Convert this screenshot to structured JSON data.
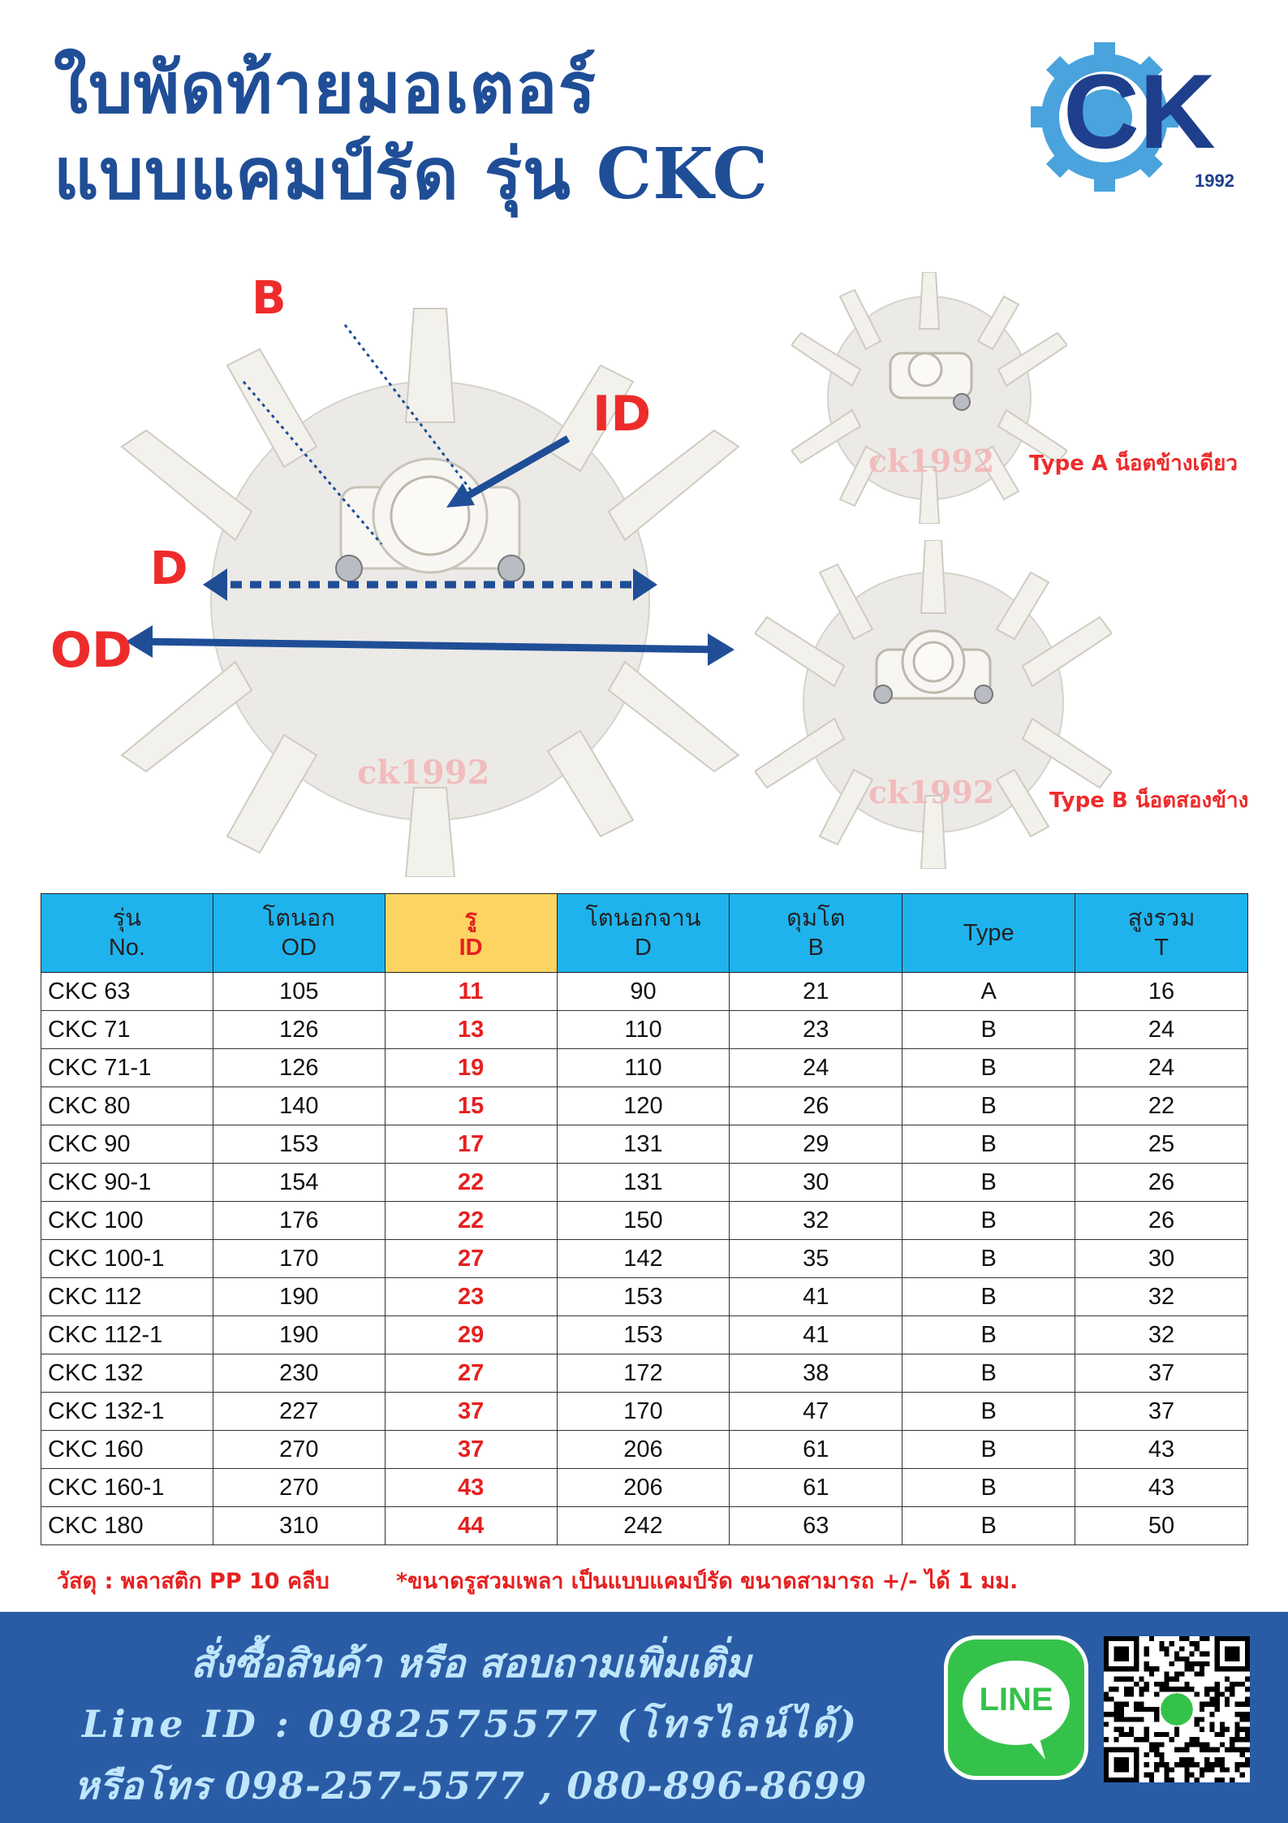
{
  "title": {
    "line1": "ใบพัดท้ายมอเตอร์",
    "line2": "แบบแคมป์รัด รุ่น CKC"
  },
  "logo": {
    "letters": "CK",
    "year": "1992",
    "icon": "gear-logo"
  },
  "diagram": {
    "label_b": "B",
    "label_id": "ID",
    "label_d": "D",
    "label_od": "OD",
    "watermark": "ck1992",
    "type_a_note": "Type A น็อตข้างเดียว",
    "type_b_note": "Type B น็อตสองข้าง"
  },
  "table": {
    "headers": [
      {
        "th": "รุ่น",
        "en": "No."
      },
      {
        "th": "โตนอก",
        "en": "OD"
      },
      {
        "th": "รู",
        "en": "ID"
      },
      {
        "th": "โตนอกจาน",
        "en": "D"
      },
      {
        "th": "ดุมโต",
        "en": "B"
      },
      {
        "th": "Type",
        "en": ""
      },
      {
        "th": "สูงรวม",
        "en": "T"
      }
    ],
    "rows": [
      [
        "CKC 63",
        "105",
        "11",
        "90",
        "21",
        "A",
        "16"
      ],
      [
        "CKC 71",
        "126",
        "13",
        "110",
        "23",
        "B",
        "24"
      ],
      [
        "CKC 71-1",
        "126",
        "19",
        "110",
        "24",
        "B",
        "24"
      ],
      [
        "CKC 80",
        "140",
        "15",
        "120",
        "26",
        "B",
        "22"
      ],
      [
        "CKC 90",
        "153",
        "17",
        "131",
        "29",
        "B",
        "25"
      ],
      [
        "CKC 90-1",
        "154",
        "22",
        "131",
        "30",
        "B",
        "26"
      ],
      [
        "CKC 100",
        "176",
        "22",
        "150",
        "32",
        "B",
        "26"
      ],
      [
        "CKC 100-1",
        "170",
        "27",
        "142",
        "35",
        "B",
        "30"
      ],
      [
        "CKC 112",
        "190",
        "23",
        "153",
        "41",
        "B",
        "32"
      ],
      [
        "CKC 112-1",
        "190",
        "29",
        "153",
        "41",
        "B",
        "32"
      ],
      [
        "CKC 132",
        "230",
        "27",
        "172",
        "38",
        "B",
        "37"
      ],
      [
        "CKC 132-1",
        "227",
        "37",
        "170",
        "47",
        "B",
        "37"
      ],
      [
        "CKC 160",
        "270",
        "37",
        "206",
        "61",
        "B",
        "43"
      ],
      [
        "CKC 160-1",
        "270",
        "43",
        "206",
        "61",
        "B",
        "43"
      ],
      [
        "CKC 180",
        "310",
        "44",
        "242",
        "63",
        "B",
        "50"
      ]
    ]
  },
  "notes": {
    "material": "วัสดุ : พลาสติก PP 10 คลีบ",
    "tolerance": "*ขนาดรูสวมเพลา เป็นแบบแคมป์รัด ขนาดสามารถ +/- ได้ 1 มม."
  },
  "footer": {
    "line1": "สั่งซื้อสินค้า หรือ สอบถามเพิ่มเติ่ม",
    "line2": "Line ID : 0982575577 (โทรไลน์ได้)",
    "line3": "หรือโทร 098-257-5577 , 080-896-8699",
    "line_badge": "LINE"
  },
  "colors": {
    "title_blue": "#1f4e97",
    "accent_red": "#ee2b2b",
    "header_blue": "#1fb3ed",
    "header_yellow": "#fdd361",
    "footer_blue": "#2a5ca6",
    "line_green": "#35c24a"
  }
}
